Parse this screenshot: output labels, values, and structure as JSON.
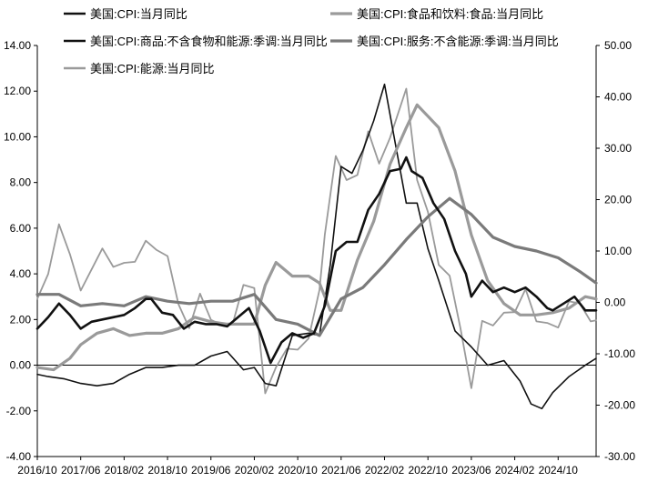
{
  "chart_data": {
    "type": "line",
    "legend_position": "top",
    "grid": false,
    "x_ticks": [
      "2016/10",
      "2017/06",
      "2018/02",
      "2018/10",
      "2019/06",
      "2020/02",
      "2020/10",
      "2021/06",
      "2022/02",
      "2022/10",
      "2023/06",
      "2024/02",
      "2024/10"
    ],
    "y_left": {
      "min": -4,
      "max": 14,
      "ticks": [
        "-4.00",
        "-2.00",
        "0.00",
        "2.00",
        "4.00",
        "6.00",
        "8.00",
        "10.00",
        "12.00",
        "14.00"
      ]
    },
    "y_right": {
      "min": -30,
      "max": 50,
      "ticks": [
        "-30.00",
        "-20.00",
        "-10.00",
        "0.00",
        "10.00",
        "20.00",
        "30.00",
        "40.00",
        "50.00"
      ]
    },
    "series": [
      {
        "name": "美国:CPI:当月同比",
        "axis": "left",
        "color": "#111111",
        "width": 2.6,
        "points": [
          [
            "2016-10",
            1.6
          ],
          [
            "2016-12",
            2.1
          ],
          [
            "2017-02",
            2.7
          ],
          [
            "2017-04",
            2.2
          ],
          [
            "2017-06",
            1.6
          ],
          [
            "2017-08",
            1.9
          ],
          [
            "2017-10",
            2.0
          ],
          [
            "2017-12",
            2.1
          ],
          [
            "2018-02",
            2.2
          ],
          [
            "2018-04",
            2.5
          ],
          [
            "2018-06",
            2.9
          ],
          [
            "2018-07",
            2.9
          ],
          [
            "2018-09",
            2.3
          ],
          [
            "2018-11",
            2.2
          ],
          [
            "2019-01",
            1.6
          ],
          [
            "2019-03",
            1.9
          ],
          [
            "2019-05",
            1.8
          ],
          [
            "2019-07",
            1.8
          ],
          [
            "2019-09",
            1.7
          ],
          [
            "2019-11",
            2.1
          ],
          [
            "2020-01",
            2.5
          ],
          [
            "2020-03",
            1.5
          ],
          [
            "2020-05",
            0.1
          ],
          [
            "2020-07",
            1.0
          ],
          [
            "2020-09",
            1.4
          ],
          [
            "2020-11",
            1.2
          ],
          [
            "2021-01",
            1.4
          ],
          [
            "2021-03",
            2.6
          ],
          [
            "2021-05",
            5.0
          ],
          [
            "2021-07",
            5.4
          ],
          [
            "2021-09",
            5.4
          ],
          [
            "2021-11",
            6.8
          ],
          [
            "2022-01",
            7.5
          ],
          [
            "2022-03",
            8.5
          ],
          [
            "2022-05",
            8.6
          ],
          [
            "2022-06",
            9.1
          ],
          [
            "2022-07",
            8.5
          ],
          [
            "2022-09",
            8.2
          ],
          [
            "2022-11",
            7.1
          ],
          [
            "2023-01",
            6.4
          ],
          [
            "2023-03",
            5.0
          ],
          [
            "2023-05",
            4.0
          ],
          [
            "2023-06",
            3.0
          ],
          [
            "2023-08",
            3.7
          ],
          [
            "2023-10",
            3.2
          ],
          [
            "2023-12",
            3.4
          ],
          [
            "2024-02",
            3.2
          ],
          [
            "2024-04",
            3.4
          ],
          [
            "2024-06",
            3.0
          ],
          [
            "2024-08",
            2.5
          ],
          [
            "2024-09",
            2.4
          ],
          [
            "2024-11",
            2.7
          ],
          [
            "2025-01",
            3.0
          ],
          [
            "2025-03",
            2.4
          ],
          [
            "2025-05",
            2.4
          ]
        ]
      },
      {
        "name": "美国:CPI:食品和饮料:食品:当月同比",
        "axis": "left",
        "color": "#9a9a9a",
        "width": 3.2,
        "points": [
          [
            "2016-10",
            -0.1
          ],
          [
            "2017-01",
            -0.2
          ],
          [
            "2017-04",
            0.3
          ],
          [
            "2017-06",
            0.9
          ],
          [
            "2017-09",
            1.4
          ],
          [
            "2017-12",
            1.6
          ],
          [
            "2018-03",
            1.3
          ],
          [
            "2018-06",
            1.4
          ],
          [
            "2018-09",
            1.4
          ],
          [
            "2018-12",
            1.6
          ],
          [
            "2019-03",
            2.1
          ],
          [
            "2019-06",
            1.9
          ],
          [
            "2019-09",
            1.8
          ],
          [
            "2019-12",
            1.8
          ],
          [
            "2020-02",
            1.8
          ],
          [
            "2020-04",
            3.5
          ],
          [
            "2020-06",
            4.5
          ],
          [
            "2020-09",
            3.9
          ],
          [
            "2020-12",
            3.9
          ],
          [
            "2021-02",
            3.6
          ],
          [
            "2021-04",
            2.4
          ],
          [
            "2021-06",
            2.4
          ],
          [
            "2021-09",
            4.6
          ],
          [
            "2021-12",
            6.3
          ],
          [
            "2022-03",
            8.8
          ],
          [
            "2022-06",
            10.4
          ],
          [
            "2022-08",
            11.4
          ],
          [
            "2022-10",
            10.9
          ],
          [
            "2022-12",
            10.4
          ],
          [
            "2023-03",
            8.5
          ],
          [
            "2023-06",
            5.7
          ],
          [
            "2023-09",
            3.7
          ],
          [
            "2023-12",
            2.7
          ],
          [
            "2024-03",
            2.2
          ],
          [
            "2024-06",
            2.2
          ],
          [
            "2024-09",
            2.3
          ],
          [
            "2024-12",
            2.5
          ],
          [
            "2025-03",
            3.0
          ],
          [
            "2025-05",
            2.9
          ]
        ]
      },
      {
        "name": "美国:CPI:商品:不含食物和能源:季调:当月同比",
        "axis": "left",
        "color": "#111111",
        "width": 1.6,
        "points": [
          [
            "2016-10",
            -0.4
          ],
          [
            "2016-12",
            -0.5
          ],
          [
            "2017-03",
            -0.6
          ],
          [
            "2017-06",
            -0.8
          ],
          [
            "2017-09",
            -0.9
          ],
          [
            "2017-12",
            -0.8
          ],
          [
            "2018-03",
            -0.4
          ],
          [
            "2018-06",
            -0.1
          ],
          [
            "2018-09",
            -0.1
          ],
          [
            "2018-12",
            0.0
          ],
          [
            "2019-03",
            0.0
          ],
          [
            "2019-06",
            0.4
          ],
          [
            "2019-09",
            0.6
          ],
          [
            "2019-12",
            -0.2
          ],
          [
            "2020-02",
            -0.1
          ],
          [
            "2020-04",
            -0.8
          ],
          [
            "2020-06",
            -0.9
          ],
          [
            "2020-09",
            1.3
          ],
          [
            "2020-12",
            1.4
          ],
          [
            "2021-02",
            1.3
          ],
          [
            "2021-04",
            4.4
          ],
          [
            "2021-06",
            8.7
          ],
          [
            "2021-08",
            8.4
          ],
          [
            "2021-10",
            9.4
          ],
          [
            "2021-12",
            10.7
          ],
          [
            "2022-02",
            12.3
          ],
          [
            "2022-04",
            9.7
          ],
          [
            "2022-06",
            7.1
          ],
          [
            "2022-08",
            7.1
          ],
          [
            "2022-10",
            5.1
          ],
          [
            "2022-12",
            3.7
          ],
          [
            "2023-03",
            1.5
          ],
          [
            "2023-06",
            0.8
          ],
          [
            "2023-09",
            0.0
          ],
          [
            "2023-12",
            0.2
          ],
          [
            "2024-03",
            -0.7
          ],
          [
            "2024-05",
            -1.7
          ],
          [
            "2024-07",
            -1.9
          ],
          [
            "2024-09",
            -1.2
          ],
          [
            "2024-12",
            -0.5
          ],
          [
            "2025-03",
            0.0
          ],
          [
            "2025-05",
            0.3
          ]
        ]
      },
      {
        "name": "美国:CPI:服务:不含能源:季调:当月同比",
        "axis": "left",
        "color": "#7a7a7a",
        "width": 3.2,
        "points": [
          [
            "2016-10",
            3.1
          ],
          [
            "2017-02",
            3.1
          ],
          [
            "2017-06",
            2.6
          ],
          [
            "2017-10",
            2.7
          ],
          [
            "2018-02",
            2.6
          ],
          [
            "2018-06",
            3.0
          ],
          [
            "2018-10",
            2.8
          ],
          [
            "2019-02",
            2.7
          ],
          [
            "2019-06",
            2.8
          ],
          [
            "2019-10",
            2.8
          ],
          [
            "2020-02",
            3.1
          ],
          [
            "2020-06",
            2.0
          ],
          [
            "2020-10",
            1.8
          ],
          [
            "2021-02",
            1.3
          ],
          [
            "2021-06",
            2.9
          ],
          [
            "2021-10",
            3.4
          ],
          [
            "2022-02",
            4.4
          ],
          [
            "2022-06",
            5.5
          ],
          [
            "2022-10",
            6.5
          ],
          [
            "2023-02",
            7.3
          ],
          [
            "2023-06",
            6.6
          ],
          [
            "2023-10",
            5.6
          ],
          [
            "2024-02",
            5.2
          ],
          [
            "2024-06",
            5.0
          ],
          [
            "2024-10",
            4.7
          ],
          [
            "2025-02",
            4.1
          ],
          [
            "2025-05",
            3.6
          ]
        ]
      },
      {
        "name": "美国:CPI:能源:当月同比",
        "axis": "right",
        "color": "#9a9a9a",
        "width": 1.8,
        "points": [
          [
            "2016-10",
            0.7
          ],
          [
            "2016-12",
            5.5
          ],
          [
            "2017-02",
            15.2
          ],
          [
            "2017-04",
            9.4
          ],
          [
            "2017-06",
            2.3
          ],
          [
            "2017-08",
            6.4
          ],
          [
            "2017-10",
            10.5
          ],
          [
            "2017-12",
            6.9
          ],
          [
            "2018-02",
            7.7
          ],
          [
            "2018-04",
            7.9
          ],
          [
            "2018-06",
            12.0
          ],
          [
            "2018-08",
            10.2
          ],
          [
            "2018-10",
            9.0
          ],
          [
            "2018-12",
            -0.3
          ],
          [
            "2019-02",
            -5.0
          ],
          [
            "2019-04",
            1.7
          ],
          [
            "2019-06",
            -3.4
          ],
          [
            "2019-08",
            -4.4
          ],
          [
            "2019-10",
            -4.2
          ],
          [
            "2019-12",
            3.4
          ],
          [
            "2020-02",
            2.8
          ],
          [
            "2020-04",
            -17.7
          ],
          [
            "2020-06",
            -12.6
          ],
          [
            "2020-08",
            -9.0
          ],
          [
            "2020-10",
            -9.2
          ],
          [
            "2020-12",
            -7.0
          ],
          [
            "2021-02",
            2.4
          ],
          [
            "2021-03",
            13.2
          ],
          [
            "2021-05",
            28.5
          ],
          [
            "2021-07",
            23.8
          ],
          [
            "2021-09",
            24.8
          ],
          [
            "2021-11",
            33.3
          ],
          [
            "2022-01",
            27.0
          ],
          [
            "2022-03",
            32.0
          ],
          [
            "2022-06",
            41.6
          ],
          [
            "2022-08",
            23.8
          ],
          [
            "2022-10",
            17.6
          ],
          [
            "2022-12",
            7.3
          ],
          [
            "2023-02",
            5.2
          ],
          [
            "2023-04",
            -5.1
          ],
          [
            "2023-06",
            -16.7
          ],
          [
            "2023-08",
            -3.6
          ],
          [
            "2023-10",
            -4.5
          ],
          [
            "2023-12",
            -2.0
          ],
          [
            "2024-02",
            -1.9
          ],
          [
            "2024-04",
            2.6
          ],
          [
            "2024-06",
            -3.7
          ],
          [
            "2024-08",
            -4.0
          ],
          [
            "2024-10",
            -4.9
          ],
          [
            "2024-12",
            0.2
          ],
          [
            "2025-02",
            -0.2
          ],
          [
            "2025-04",
            -3.7
          ],
          [
            "2025-05",
            -3.5
          ]
        ]
      }
    ]
  }
}
